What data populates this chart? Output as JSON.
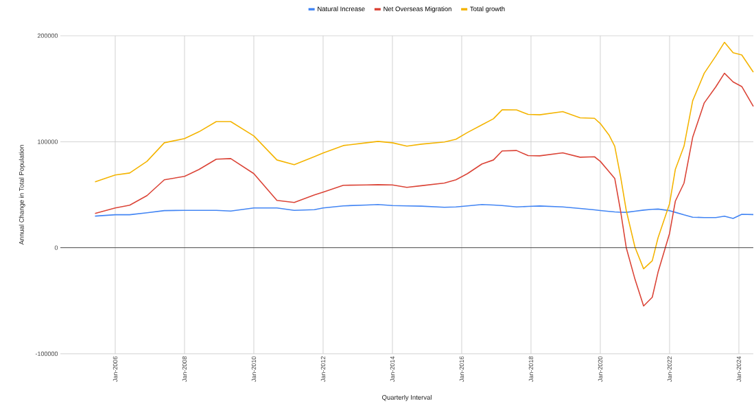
{
  "chart_data": {
    "type": "line",
    "xlabel": "Quarterly Interval",
    "ylabel": "Annual Change in Total Population",
    "x": [
      "2005-06",
      "2006-01",
      "2006-06",
      "2006-12",
      "2007-06",
      "2008-01",
      "2008-06",
      "2008-12",
      "2009-05",
      "2010-01",
      "2010-09",
      "2011-03",
      "2011-10",
      "2012-01",
      "2012-08",
      "2013-04",
      "2013-08",
      "2014-01",
      "2014-06",
      "2014-11",
      "2015-07",
      "2015-11",
      "2016-03",
      "2016-08",
      "2016-12",
      "2017-03",
      "2017-08",
      "2017-12",
      "2018-04",
      "2018-12",
      "2019-06",
      "2019-11",
      "2020-01",
      "2020-04",
      "2020-06",
      "2020-08",
      "2020-10",
      "2021-01",
      "2021-04",
      "2021-07",
      "2021-09",
      "2022-01",
      "2022-03",
      "2022-06",
      "2022-09",
      "2023-01",
      "2023-05",
      "2023-08",
      "2023-11",
      "2024-02",
      "2024-06"
    ],
    "series": [
      {
        "name": "Natural Increase",
        "color": "#4285f4",
        "values": [
          29800,
          31100,
          31100,
          33000,
          35000,
          35300,
          35300,
          35300,
          34600,
          37500,
          37500,
          35300,
          35900,
          37500,
          39500,
          40300,
          40800,
          39800,
          39500,
          39200,
          38200,
          38500,
          39500,
          40800,
          40300,
          39800,
          38500,
          39000,
          39400,
          38500,
          37000,
          35700,
          35100,
          34300,
          33800,
          33500,
          33400,
          34500,
          35500,
          36200,
          36500,
          35000,
          33400,
          31000,
          28800,
          28500,
          28500,
          29800,
          27600,
          31500,
          31300
        ]
      },
      {
        "name": "Net Overseas Migration",
        "color": "#db4437",
        "values": [
          32400,
          37500,
          40100,
          49200,
          64100,
          67300,
          73800,
          83500,
          84100,
          69900,
          44700,
          42700,
          49800,
          52400,
          58900,
          59200,
          59500,
          59200,
          57000,
          58500,
          61000,
          64100,
          69900,
          79000,
          82800,
          91300,
          91700,
          86900,
          86700,
          89500,
          85400,
          85800,
          81500,
          71800,
          65400,
          35100,
          0,
          -29600,
          -55000,
          -46700,
          -23100,
          13600,
          44000,
          61000,
          104200,
          136600,
          151700,
          164600,
          156400,
          152100,
          133300
        ]
      },
      {
        "name": "Total growth",
        "color": "#f4b400",
        "values": [
          62100,
          68600,
          70500,
          81500,
          99000,
          103000,
          109400,
          119000,
          119000,
          105500,
          82800,
          78300,
          86000,
          89300,
          96400,
          99000,
          100300,
          99000,
          95800,
          97700,
          99700,
          102300,
          108700,
          115900,
          121700,
          130100,
          130000,
          125800,
          125400,
          128400,
          122600,
          122100,
          117200,
          106400,
          95800,
          67500,
          35100,
          600,
          -19900,
          -12300,
          9300,
          41600,
          74000,
          95800,
          138700,
          164600,
          180800,
          193800,
          184000,
          181900,
          165700
        ]
      }
    ],
    "xlim": [
      "2004-06",
      "2024-06"
    ],
    "xticks": [
      {
        "value": "2006-01",
        "label": "Jan-2006"
      },
      {
        "value": "2008-01",
        "label": "Jan-2008"
      },
      {
        "value": "2010-01",
        "label": "Jan-2010"
      },
      {
        "value": "2012-01",
        "label": "Jan-2012"
      },
      {
        "value": "2014-01",
        "label": "Jan-2014"
      },
      {
        "value": "2016-01",
        "label": "Jan-2016"
      },
      {
        "value": "2018-01",
        "label": "Jan-2018"
      },
      {
        "value": "2020-01",
        "label": "Jan-2020"
      },
      {
        "value": "2022-01",
        "label": "Jan-2022"
      },
      {
        "value": "2024-01",
        "label": "Jan-2024"
      }
    ],
    "ylim": [
      -100000,
      200000
    ],
    "yticks": [
      -100000,
      0,
      100000,
      200000
    ],
    "ref_lines": [
      {
        "axis": "y",
        "value": 0,
        "color": "#333333"
      }
    ],
    "grid": true,
    "legend": "top",
    "marker": "none",
    "line_style": "solid"
  }
}
